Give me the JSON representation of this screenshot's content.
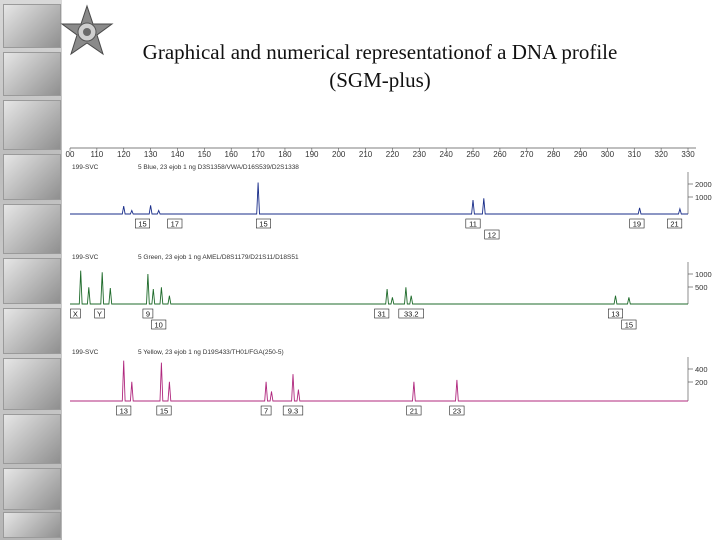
{
  "slide": {
    "title_line1": "Graphical and numerical representationof a DNA profile",
    "title_line2": "(SGM-plus)"
  },
  "colors": {
    "blue": "#1a2e8a",
    "green": "#1f6b2b",
    "yellow": "#b0287e",
    "strip": "#c4c4c4"
  },
  "chart_data": {
    "type": "line",
    "x_ticks": [
      "00",
      "110",
      "120",
      "130",
      "140",
      "150",
      "160",
      "170",
      "180",
      "190",
      "200",
      "210",
      "220",
      "230",
      "240",
      "250",
      "260",
      "270",
      "280",
      "290",
      "300",
      "310",
      "320",
      "330"
    ],
    "xlim": [
      100,
      330
    ],
    "panels": [
      {
        "name": "blue",
        "header_left": "199-SVC",
        "header_right": "5 Blue, 23 ejob 1 ng D3S1358/VWA/D16S539/D2S1338",
        "y_ticks": [
          "2000",
          "1000"
        ],
        "ylim": [
          0,
          2400
        ],
        "peaks": [
          {
            "x": 120,
            "h": 450
          },
          {
            "x": 123,
            "h": 200
          },
          {
            "x": 130,
            "h": 500
          },
          {
            "x": 133,
            "h": 200
          },
          {
            "x": 170,
            "h": 1800
          },
          {
            "x": 250,
            "h": 800
          },
          {
            "x": 254,
            "h": 900
          },
          {
            "x": 312,
            "h": 350
          },
          {
            "x": 327,
            "h": 300
          }
        ],
        "allele_labels": [
          {
            "x": 127,
            "text": "15",
            "row": 0
          },
          {
            "x": 139,
            "text": "17",
            "row": 0
          },
          {
            "x": 172,
            "text": "15",
            "row": 0
          },
          {
            "x": 250,
            "text": "11",
            "row": 0
          },
          {
            "x": 257,
            "text": "12",
            "row": 1
          },
          {
            "x": 311,
            "text": "19",
            "row": 0
          },
          {
            "x": 325,
            "text": "21",
            "row": 0
          }
        ]
      },
      {
        "name": "green",
        "header_left": "199-SVC",
        "header_right": "5 Green, 23 ejob 1 ng AMEL/D8S1179/D21S11/D18S51",
        "y_ticks": [
          "1000",
          "500"
        ],
        "ylim": [
          0,
          1200
        ],
        "peaks": [
          {
            "x": 104,
            "h": 1000
          },
          {
            "x": 107,
            "h": 500
          },
          {
            "x": 112,
            "h": 950
          },
          {
            "x": 115,
            "h": 480
          },
          {
            "x": 129,
            "h": 900
          },
          {
            "x": 131,
            "h": 450
          },
          {
            "x": 134,
            "h": 500
          },
          {
            "x": 137,
            "h": 250
          },
          {
            "x": 218,
            "h": 450
          },
          {
            "x": 220,
            "h": 200
          },
          {
            "x": 225,
            "h": 500
          },
          {
            "x": 227,
            "h": 250
          },
          {
            "x": 303,
            "h": 250
          },
          {
            "x": 308,
            "h": 200
          }
        ],
        "allele_labels": [
          {
            "x": 102,
            "text": "X",
            "row": 0
          },
          {
            "x": 111,
            "text": "Y",
            "row": 0
          },
          {
            "x": 129,
            "text": "9",
            "row": 0
          },
          {
            "x": 133,
            "text": "10",
            "row": 1
          },
          {
            "x": 216,
            "text": "31",
            "row": 0
          },
          {
            "x": 227,
            "text": "33.2",
            "row": 0
          },
          {
            "x": 303,
            "text": "13",
            "row": 0
          },
          {
            "x": 308,
            "text": "15",
            "row": 1
          }
        ]
      },
      {
        "name": "yellow",
        "header_left": "199-SVC",
        "header_right": "5 Yellow, 23 ejob 1 ng D19S433/TH01/FGA(250-5)",
        "y_ticks": [
          "400",
          "200"
        ],
        "ylim": [
          0,
          500
        ],
        "peaks": [
          {
            "x": 120,
            "h": 420
          },
          {
            "x": 123,
            "h": 200
          },
          {
            "x": 134,
            "h": 400
          },
          {
            "x": 137,
            "h": 200
          },
          {
            "x": 173,
            "h": 200
          },
          {
            "x": 175,
            "h": 100
          },
          {
            "x": 183,
            "h": 280
          },
          {
            "x": 185,
            "h": 120
          },
          {
            "x": 228,
            "h": 200
          },
          {
            "x": 244,
            "h": 220
          }
        ],
        "allele_labels": [
          {
            "x": 120,
            "text": "13",
            "row": 0
          },
          {
            "x": 135,
            "text": "15",
            "row": 0
          },
          {
            "x": 173,
            "text": "7",
            "row": 0
          },
          {
            "x": 183,
            "text": "9.3",
            "row": 0
          },
          {
            "x": 228,
            "text": "21",
            "row": 0
          },
          {
            "x": 244,
            "text": "23",
            "row": 0
          }
        ]
      }
    ]
  }
}
